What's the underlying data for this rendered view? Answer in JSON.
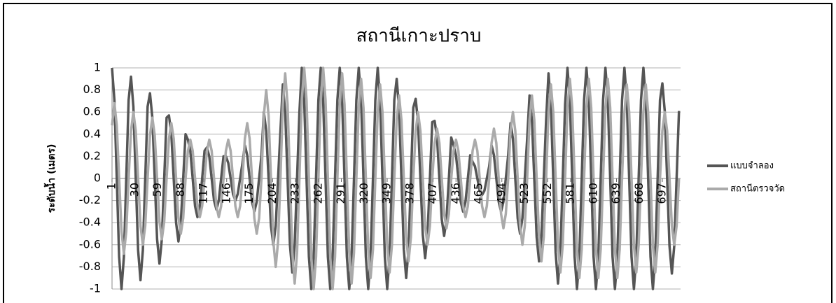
{
  "chart_data": {
    "type": "line",
    "title": "สถานีเกาะปราบ",
    "y_label": "ระดับน้ำ (เมตร)",
    "legend": "right",
    "grid": true,
    "xlim": [
      1,
      720
    ],
    "xticks": [
      1,
      30,
      59,
      88,
      117,
      146,
      175,
      204,
      233,
      262,
      291,
      320,
      349,
      378,
      407,
      436,
      465,
      494,
      523,
      552,
      581,
      610,
      639,
      668,
      697
    ],
    "ylim": [
      -1,
      1
    ],
    "yticks": [
      -1,
      -0.8,
      -0.6,
      -0.4,
      -0.2,
      0,
      0.2,
      0.4,
      0.6,
      0.8,
      1
    ],
    "x": [
      1,
      4,
      7,
      10,
      13,
      16,
      19,
      22,
      25,
      28,
      31,
      34,
      37,
      40,
      43,
      46,
      49,
      52,
      55,
      58,
      61,
      64,
      67,
      70,
      73,
      76,
      79,
      82,
      85,
      88,
      91,
      94,
      97,
      100,
      103,
      106,
      109,
      112,
      115,
      118,
      121,
      124,
      127,
      130,
      133,
      136,
      139,
      142,
      145,
      148,
      151,
      154,
      157,
      160,
      163,
      166,
      169,
      172,
      175,
      178,
      181,
      184,
      187,
      190,
      193,
      196,
      199,
      202,
      205,
      208,
      211,
      214,
      217,
      220,
      223,
      226,
      229,
      232,
      235,
      238,
      241,
      244,
      247,
      250,
      253,
      256,
      259,
      262,
      265,
      268,
      271,
      274,
      277,
      280,
      283,
      286,
      289,
      292,
      295,
      298,
      301,
      304,
      307,
      310,
      313,
      316,
      319,
      322,
      325,
      328,
      331,
      334,
      337,
      340,
      343,
      346,
      349,
      352,
      355,
      358,
      361,
      364,
      367,
      370,
      373,
      376,
      379,
      382,
      385,
      388,
      391,
      394,
      397,
      400,
      403,
      406,
      409,
      412,
      415,
      418,
      421,
      424,
      427,
      430,
      433,
      436,
      439,
      442,
      445,
      448,
      451,
      454,
      457,
      460,
      463,
      466,
      469,
      472,
      475,
      478,
      481,
      484,
      487,
      490,
      493,
      496,
      499,
      502,
      505,
      508,
      511,
      514,
      517,
      520,
      523,
      526,
      529,
      532,
      535,
      538,
      541,
      544,
      547,
      550,
      553,
      556,
      559,
      562,
      565,
      568,
      571,
      574,
      577,
      580,
      583,
      586,
      589,
      592,
      595,
      598,
      601,
      604,
      607,
      610,
      613,
      616,
      619,
      622,
      625,
      628,
      631,
      634,
      637,
      640,
      643,
      646,
      649,
      652,
      655,
      658,
      661,
      664,
      667,
      670,
      673,
      676,
      679,
      682,
      685,
      688,
      691,
      694,
      697,
      700,
      703,
      706,
      709,
      712,
      715,
      718
    ],
    "series": [
      {
        "name": "แบบจำลอง",
        "color": "#555555",
        "values": [
          1,
          0.71,
          0,
          -0.71,
          -1,
          -0.71,
          0,
          0.71,
          0.92,
          0.65,
          0,
          -0.65,
          -0.92,
          -0.65,
          0,
          0.65,
          0.77,
          0.55,
          0,
          -0.55,
          -0.77,
          -0.55,
          0,
          0.55,
          0.57,
          0.4,
          0,
          -0.4,
          -0.57,
          -0.4,
          0,
          0.4,
          0.35,
          0.25,
          0,
          -0.25,
          -0.35,
          -0.25,
          0,
          0.25,
          0.28,
          0.2,
          0,
          -0.2,
          -0.28,
          -0.2,
          0,
          0.2,
          0.2,
          0.14,
          0,
          -0.14,
          -0.2,
          -0.14,
          0,
          0.14,
          0.3,
          0.21,
          0,
          -0.21,
          -0.3,
          -0.21,
          0,
          0.21,
          0.6,
          0.43,
          0,
          -0.43,
          -0.6,
          -0.43,
          0,
          0.43,
          0.85,
          0.6,
          0,
          -0.6,
          -0.85,
          -0.6,
          0,
          0.6,
          1,
          0.71,
          0,
          -0.71,
          -1,
          -0.71,
          0,
          0.71,
          1,
          0.71,
          0,
          -0.71,
          -1,
          -0.71,
          0,
          0.71,
          1,
          0.71,
          0,
          -0.71,
          -1,
          -0.71,
          0,
          0.71,
          1,
          0.71,
          0,
          -0.71,
          -1,
          -0.71,
          0,
          0.71,
          1,
          0.71,
          0,
          -0.71,
          -1,
          -0.71,
          0,
          0.71,
          0.9,
          0.64,
          0,
          -0.64,
          -0.9,
          -0.64,
          0,
          0.64,
          0.72,
          0.51,
          0,
          -0.51,
          -0.72,
          -0.51,
          0,
          0.51,
          0.52,
          0.37,
          0,
          -0.37,
          -0.52,
          -0.37,
          0,
          0.37,
          0.3,
          0.21,
          0,
          -0.21,
          -0.3,
          -0.21,
          0,
          0.21,
          0.15,
          0.11,
          0,
          -0.11,
          -0.15,
          -0.11,
          0,
          0.11,
          0.3,
          0.21,
          0,
          -0.21,
          -0.3,
          -0.21,
          0,
          0.21,
          0.5,
          0.36,
          0,
          -0.36,
          -0.5,
          -0.36,
          0,
          0.36,
          0.75,
          0.53,
          0,
          -0.53,
          -0.75,
          -0.53,
          0,
          0.53,
          0.95,
          0.67,
          0,
          -0.67,
          -0.95,
          -0.67,
          0,
          0.67,
          1,
          0.71,
          0,
          -0.71,
          -1,
          -0.71,
          0,
          0.71,
          1,
          0.71,
          0,
          -0.71,
          -1,
          -0.71,
          0,
          0.71,
          1,
          0.71,
          0,
          -0.71,
          -1,
          -0.71,
          0,
          0.71,
          1,
          0.71,
          0,
          -0.71,
          -1,
          -0.71,
          0,
          0.71,
          1,
          0.71,
          0,
          -0.71,
          -1,
          -0.71,
          0,
          0.71,
          0.86,
          0.61,
          0,
          -0.61,
          -0.86,
          -0.61,
          0,
          0.61
        ]
      },
      {
        "name": "สถานีตรวจวัด",
        "color": "#aaaaaa",
        "values": [
          0.48,
          0.68,
          0.48,
          0,
          -0.48,
          -0.68,
          -0.48,
          0,
          0.43,
          0.6,
          0.43,
          0,
          -0.43,
          -0.6,
          -0.43,
          0,
          0.39,
          0.55,
          0.39,
          0,
          -0.39,
          -0.55,
          -0.39,
          0,
          0.36,
          0.5,
          0.36,
          0,
          -0.36,
          -0.5,
          -0.36,
          0,
          0.25,
          0.35,
          0.25,
          0,
          -0.25,
          -0.35,
          -0.25,
          0,
          0.25,
          0.35,
          0.25,
          0,
          -0.25,
          -0.35,
          -0.25,
          0,
          0.25,
          0.35,
          0.25,
          0,
          -0.25,
          -0.35,
          -0.25,
          0,
          0.36,
          0.5,
          0.36,
          0,
          -0.36,
          -0.5,
          -0.36,
          0,
          0.57,
          0.8,
          0.57,
          0,
          -0.57,
          -0.8,
          -0.57,
          0,
          0.67,
          0.95,
          0.67,
          0,
          -0.67,
          -0.95,
          -0.67,
          0,
          0.71,
          1,
          0.71,
          0,
          -0.71,
          -1,
          -0.71,
          0,
          0.71,
          1,
          0.71,
          0,
          -0.71,
          -1,
          -0.71,
          0,
          0.67,
          0.95,
          0.67,
          0,
          -0.67,
          -0.95,
          -0.67,
          0,
          0.64,
          0.9,
          0.64,
          0,
          -0.64,
          -0.9,
          -0.64,
          0,
          0.6,
          0.85,
          0.6,
          0,
          -0.6,
          -0.85,
          -0.6,
          0,
          0.53,
          0.75,
          0.53,
          0,
          -0.53,
          -0.75,
          -0.53,
          0,
          0.43,
          0.6,
          0.43,
          0,
          -0.43,
          -0.6,
          -0.43,
          0,
          0.32,
          0.45,
          0.32,
          0,
          -0.32,
          -0.45,
          -0.32,
          0,
          0.25,
          0.35,
          0.25,
          0,
          -0.25,
          -0.35,
          -0.25,
          0,
          0.25,
          0.35,
          0.25,
          0,
          -0.25,
          -0.35,
          -0.25,
          0,
          0.32,
          0.45,
          0.32,
          0,
          -0.32,
          -0.45,
          -0.32,
          0,
          0.43,
          0.6,
          0.43,
          0,
          -0.43,
          -0.6,
          -0.43,
          0,
          0.53,
          0.75,
          0.53,
          0,
          -0.53,
          -0.75,
          -0.53,
          0,
          0.6,
          0.85,
          0.6,
          0,
          -0.6,
          -0.85,
          -0.6,
          0,
          0.64,
          0.9,
          0.64,
          0,
          -0.64,
          -0.9,
          -0.64,
          0,
          0.64,
          0.9,
          0.64,
          0,
          -0.64,
          -0.9,
          -0.64,
          0,
          0.64,
          0.9,
          0.64,
          0,
          -0.64,
          -0.9,
          -0.64,
          0,
          0.6,
          0.85,
          0.6,
          0,
          -0.6,
          -0.85,
          -0.6,
          0,
          0.6,
          0.85,
          0.6,
          0,
          -0.6,
          -0.85,
          -0.6,
          0,
          0.43,
          0.6,
          0.43,
          0,
          -0.43,
          -0.6,
          -0.43,
          0
        ]
      }
    ]
  }
}
